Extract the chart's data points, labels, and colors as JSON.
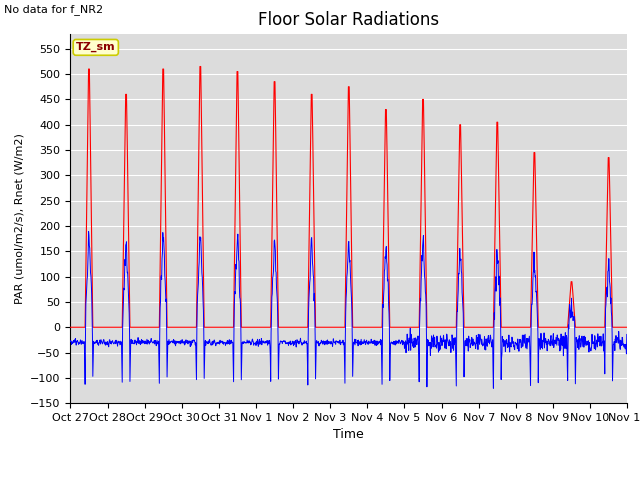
{
  "title": "Floor Solar Radiations",
  "xlabel": "Time",
  "ylabel": "PAR (umol/m2/s), Rnet (W/m2)",
  "no_data_text": "No data for f_NR2",
  "legend_label_text": "TZ_sm",
  "ylim": [
    -150,
    580
  ],
  "yticks": [
    -150,
    -100,
    -50,
    0,
    50,
    100,
    150,
    200,
    250,
    300,
    350,
    400,
    450,
    500,
    550
  ],
  "xtick_labels": [
    "Oct 27",
    "Oct 28",
    "Oct 29",
    "Oct 30",
    "Oct 31",
    "Nov 1",
    "Nov 2",
    "Nov 3",
    "Nov 4",
    "Nov 5",
    "Nov 6",
    "Nov 7",
    "Nov 8",
    "Nov 9",
    "Nov 10",
    "Nov 11"
  ],
  "q_line_color": "#FF0000",
  "NR1_color": "#0000FF",
  "bg_color": "#DCDCDC",
  "legend_box_facecolor": "#FFFFCC",
  "legend_box_edgecolor": "#CCCC00",
  "peaks_q": [
    510,
    460,
    510,
    515,
    505,
    485,
    460,
    475,
    430,
    450,
    400,
    405,
    345,
    90,
    335
  ],
  "n_days": 15,
  "title_fontsize": 12,
  "axis_fontsize": 8,
  "ylabel_fontsize": 8
}
